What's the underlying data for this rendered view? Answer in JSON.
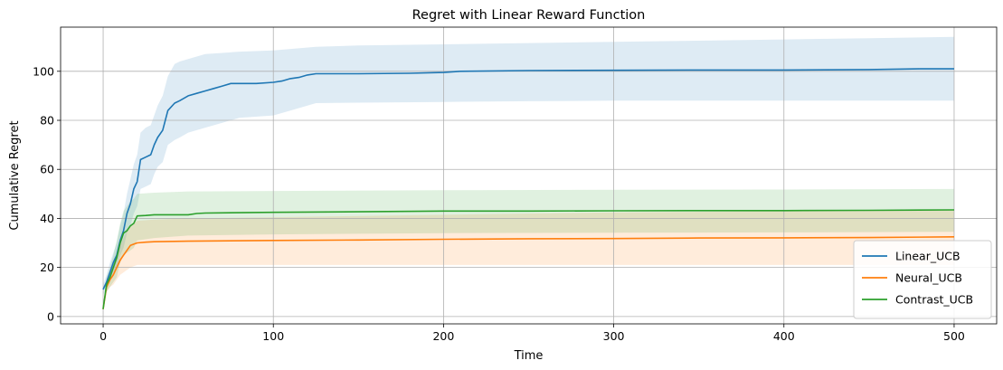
{
  "chart_data": {
    "type": "line",
    "title": "Regret with Linear Reward Function",
    "xlabel": "Time",
    "ylabel": "Cumulative Regret",
    "xlim": [
      -25,
      525
    ],
    "ylim": [
      -3,
      118
    ],
    "xticks": [
      0,
      100,
      200,
      300,
      400,
      500
    ],
    "yticks": [
      0,
      20,
      40,
      60,
      80,
      100
    ],
    "grid": true,
    "legend_position": "lower-right",
    "series": [
      {
        "name": "Linear_UCB",
        "color": "#1f77b4",
        "band_alpha": 0.15,
        "points": [
          [
            0,
            11
          ],
          [
            2,
            14
          ],
          [
            4,
            18
          ],
          [
            6,
            22
          ],
          [
            8,
            25
          ],
          [
            10,
            31
          ],
          [
            12,
            35
          ],
          [
            14,
            42
          ],
          [
            16,
            46
          ],
          [
            18,
            52
          ],
          [
            20,
            55
          ],
          [
            22,
            64
          ],
          [
            25,
            65
          ],
          [
            28,
            66
          ],
          [
            30,
            70
          ],
          [
            32,
            73
          ],
          [
            35,
            76
          ],
          [
            38,
            84
          ],
          [
            42,
            87
          ],
          [
            45,
            88
          ],
          [
            50,
            90
          ],
          [
            55,
            91
          ],
          [
            60,
            92
          ],
          [
            65,
            93
          ],
          [
            70,
            94
          ],
          [
            75,
            95
          ],
          [
            80,
            95
          ],
          [
            90,
            95
          ],
          [
            100,
            95.5
          ],
          [
            105,
            96
          ],
          [
            110,
            97
          ],
          [
            115,
            97.5
          ],
          [
            120,
            98.5
          ],
          [
            125,
            99
          ],
          [
            150,
            99
          ],
          [
            180,
            99.2
          ],
          [
            200,
            99.5
          ],
          [
            210,
            100
          ],
          [
            250,
            100.3
          ],
          [
            300,
            100.4
          ],
          [
            350,
            100.5
          ],
          [
            400,
            100.5
          ],
          [
            450,
            100.7
          ],
          [
            480,
            101
          ],
          [
            500,
            101
          ]
        ],
        "upper": [
          [
            0,
            13
          ],
          [
            2,
            17
          ],
          [
            4,
            22
          ],
          [
            6,
            26
          ],
          [
            8,
            30
          ],
          [
            10,
            37
          ],
          [
            12,
            42
          ],
          [
            14,
            50
          ],
          [
            16,
            56
          ],
          [
            18,
            62
          ],
          [
            20,
            66
          ],
          [
            22,
            75
          ],
          [
            25,
            77
          ],
          [
            28,
            78
          ],
          [
            30,
            82
          ],
          [
            32,
            86
          ],
          [
            35,
            90
          ],
          [
            38,
            98
          ],
          [
            42,
            103
          ],
          [
            45,
            104
          ],
          [
            50,
            105
          ],
          [
            55,
            106
          ],
          [
            60,
            107
          ],
          [
            70,
            107.5
          ],
          [
            80,
            108
          ],
          [
            100,
            108.5
          ],
          [
            125,
            110
          ],
          [
            150,
            110.5
          ],
          [
            200,
            111
          ],
          [
            250,
            111.5
          ],
          [
            300,
            112
          ],
          [
            400,
            113
          ],
          [
            450,
            113.5
          ],
          [
            500,
            114
          ]
        ],
        "lower": [
          [
            0,
            9
          ],
          [
            2,
            11
          ],
          [
            4,
            14
          ],
          [
            6,
            18
          ],
          [
            8,
            20
          ],
          [
            10,
            25
          ],
          [
            12,
            28
          ],
          [
            14,
            34
          ],
          [
            16,
            37
          ],
          [
            18,
            42
          ],
          [
            20,
            45
          ],
          [
            22,
            52
          ],
          [
            25,
            53
          ],
          [
            28,
            54
          ],
          [
            30,
            58
          ],
          [
            32,
            61
          ],
          [
            35,
            63
          ],
          [
            38,
            70
          ],
          [
            42,
            72
          ],
          [
            45,
            73
          ],
          [
            50,
            75
          ],
          [
            55,
            76
          ],
          [
            60,
            77
          ],
          [
            70,
            79
          ],
          [
            80,
            81
          ],
          [
            100,
            82
          ],
          [
            110,
            84
          ],
          [
            120,
            86
          ],
          [
            125,
            87
          ],
          [
            150,
            87.2
          ],
          [
            200,
            87.5
          ],
          [
            250,
            87.8
          ],
          [
            300,
            88
          ],
          [
            400,
            88
          ],
          [
            450,
            88
          ],
          [
            500,
            88
          ]
        ]
      },
      {
        "name": "Neural_UCB",
        "color": "#ff7f0e",
        "band_alpha": 0.15,
        "points": [
          [
            0,
            3
          ],
          [
            2,
            12
          ],
          [
            4,
            15
          ],
          [
            6,
            17
          ],
          [
            8,
            20
          ],
          [
            10,
            23
          ],
          [
            12,
            25
          ],
          [
            14,
            27
          ],
          [
            16,
            29
          ],
          [
            18,
            29.5
          ],
          [
            20,
            30
          ],
          [
            25,
            30.3
          ],
          [
            30,
            30.5
          ],
          [
            50,
            30.7
          ],
          [
            100,
            31
          ],
          [
            150,
            31.2
          ],
          [
            200,
            31.5
          ],
          [
            250,
            31.7
          ],
          [
            300,
            31.8
          ],
          [
            350,
            32
          ],
          [
            400,
            32.1
          ],
          [
            450,
            32.2
          ],
          [
            500,
            32.5
          ]
        ],
        "upper": [
          [
            0,
            4
          ],
          [
            2,
            14
          ],
          [
            4,
            18
          ],
          [
            6,
            21
          ],
          [
            8,
            25
          ],
          [
            10,
            29
          ],
          [
            12,
            32
          ],
          [
            14,
            35
          ],
          [
            16,
            37
          ],
          [
            18,
            38
          ],
          [
            20,
            39
          ],
          [
            30,
            39.5
          ],
          [
            50,
            40
          ],
          [
            100,
            40.5
          ],
          [
            200,
            41.5
          ],
          [
            300,
            42.5
          ],
          [
            400,
            43
          ],
          [
            500,
            43.5
          ]
        ],
        "lower": [
          [
            0,
            2
          ],
          [
            2,
            10
          ],
          [
            4,
            12
          ],
          [
            6,
            13
          ],
          [
            8,
            15
          ],
          [
            10,
            17
          ],
          [
            12,
            18
          ],
          [
            14,
            19
          ],
          [
            16,
            20
          ],
          [
            18,
            20.5
          ],
          [
            20,
            21
          ],
          [
            50,
            21
          ],
          [
            100,
            21
          ],
          [
            200,
            21
          ],
          [
            300,
            21
          ],
          [
            400,
            21
          ],
          [
            500,
            21
          ]
        ]
      },
      {
        "name": "Contrast_UCB",
        "color": "#2ca02c",
        "band_alpha": 0.15,
        "points": [
          [
            0,
            3
          ],
          [
            2,
            13
          ],
          [
            4,
            16
          ],
          [
            6,
            20
          ],
          [
            8,
            24
          ],
          [
            10,
            30
          ],
          [
            12,
            34
          ],
          [
            14,
            35
          ],
          [
            16,
            37
          ],
          [
            18,
            38
          ],
          [
            20,
            41
          ],
          [
            25,
            41.2
          ],
          [
            30,
            41.5
          ],
          [
            40,
            41.5
          ],
          [
            50,
            41.5
          ],
          [
            55,
            42
          ],
          [
            60,
            42.2
          ],
          [
            100,
            42.5
          ],
          [
            150,
            42.7
          ],
          [
            200,
            43
          ],
          [
            250,
            43
          ],
          [
            300,
            43.1
          ],
          [
            350,
            43.2
          ],
          [
            400,
            43.2
          ],
          [
            450,
            43.3
          ],
          [
            500,
            43.5
          ]
        ],
        "upper": [
          [
            0,
            4
          ],
          [
            2,
            16
          ],
          [
            4,
            20
          ],
          [
            6,
            25
          ],
          [
            8,
            31
          ],
          [
            10,
            38
          ],
          [
            12,
            43
          ],
          [
            14,
            45
          ],
          [
            16,
            47
          ],
          [
            18,
            48
          ],
          [
            20,
            50
          ],
          [
            30,
            50.5
          ],
          [
            50,
            51
          ],
          [
            100,
            51.2
          ],
          [
            200,
            51.5
          ],
          [
            300,
            51.7
          ],
          [
            400,
            51.8
          ],
          [
            500,
            52
          ]
        ],
        "lower": [
          [
            0,
            2
          ],
          [
            2,
            10
          ],
          [
            4,
            12
          ],
          [
            6,
            14
          ],
          [
            8,
            16
          ],
          [
            10,
            22
          ],
          [
            12,
            25
          ],
          [
            14,
            26
          ],
          [
            16,
            27
          ],
          [
            18,
            28
          ],
          [
            20,
            31
          ],
          [
            30,
            32
          ],
          [
            50,
            33
          ],
          [
            100,
            33.5
          ],
          [
            200,
            34
          ],
          [
            300,
            34.2
          ],
          [
            400,
            34.3
          ],
          [
            500,
            34.5
          ]
        ]
      }
    ]
  }
}
